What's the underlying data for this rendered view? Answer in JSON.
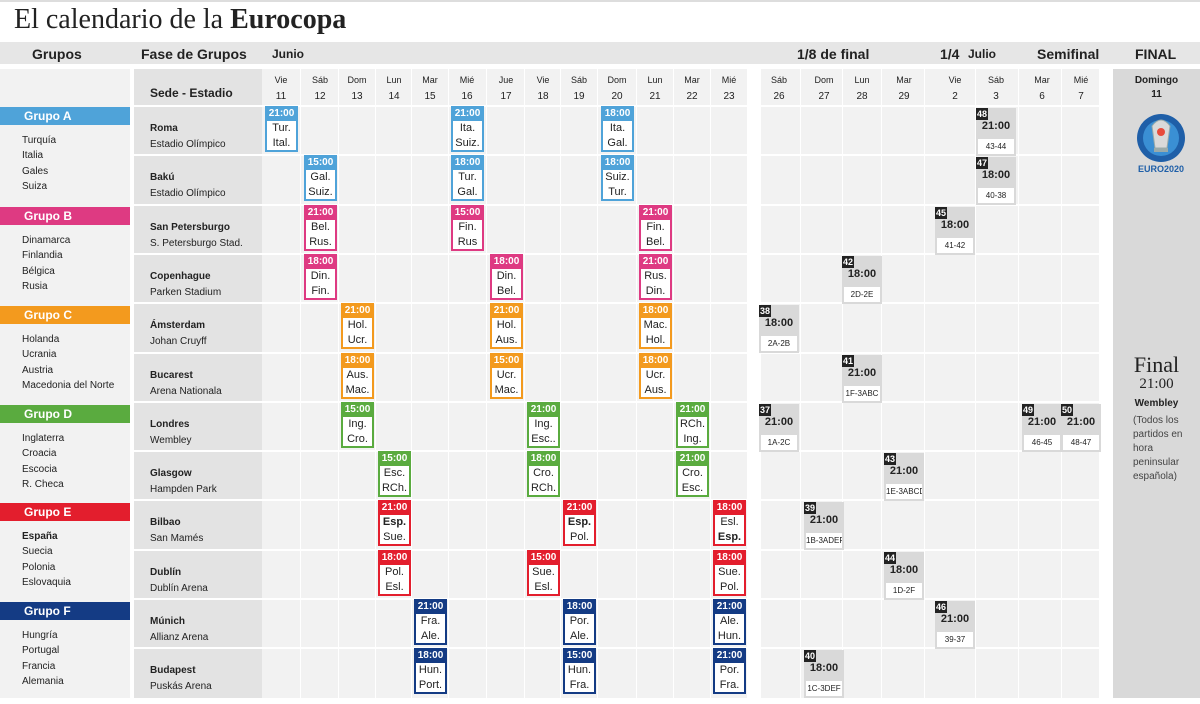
{
  "title": {
    "prefix": "El calendario de la",
    "bold": "Eurocopa"
  },
  "header": {
    "grupos": "Grupos",
    "fase": "Fase de Grupos",
    "junio": "Junio",
    "octavos": "1/8 de final",
    "cuartos": "1/4",
    "julio": "Julio",
    "semifinal": "Semifinal",
    "final": "FINAL"
  },
  "sede_header": "Sede - Estadio",
  "days": [
    {
      "w": "Vie",
      "d": "11"
    },
    {
      "w": "Sáb",
      "d": "12"
    },
    {
      "w": "Dom",
      "d": "13"
    },
    {
      "w": "Lun",
      "d": "14"
    },
    {
      "w": "Mar",
      "d": "15"
    },
    {
      "w": "Mié",
      "d": "16"
    },
    {
      "w": "Jue",
      "d": "17"
    },
    {
      "w": "Vie",
      "d": "18"
    },
    {
      "w": "Sáb",
      "d": "19"
    },
    {
      "w": "Dom",
      "d": "20"
    },
    {
      "w": "Lun",
      "d": "21"
    },
    {
      "w": "Mar",
      "d": "22"
    },
    {
      "w": "Mié",
      "d": "23"
    },
    {
      "w": "Sáb",
      "d": "26"
    },
    {
      "w": "Dom",
      "d": "27"
    },
    {
      "w": "Lun",
      "d": "28"
    },
    {
      "w": "Mar",
      "d": "29"
    },
    {
      "w": "Vie",
      "d": "2"
    },
    {
      "w": "Sáb",
      "d": "3"
    },
    {
      "w": "Mar",
      "d": "6"
    },
    {
      "w": "Mié",
      "d": "7"
    }
  ],
  "groups": [
    {
      "name": "Grupo A",
      "color": "#4fa3d9",
      "teams": [
        "Turquía",
        "Italia",
        "Gales",
        "Suiza"
      ]
    },
    {
      "name": "Grupo B",
      "color": "#de3a82",
      "teams": [
        "Dinamarca",
        "Finlandia",
        "Bélgica",
        "Rusia"
      ]
    },
    {
      "name": "Grupo C",
      "color": "#f39a1e",
      "teams": [
        "Holanda",
        "Ucrania",
        "Austria",
        "Macedonia del Norte"
      ]
    },
    {
      "name": "Grupo D",
      "color": "#5aab3f",
      "teams": [
        "Inglaterra",
        "Croacia",
        "Escocia",
        "R. Checa"
      ]
    },
    {
      "name": "Grupo E",
      "color": "#e31e2d",
      "teams": [
        "España",
        "Suecia",
        "Polonia",
        "Eslovaquia"
      ]
    },
    {
      "name": "Grupo F",
      "color": "#143b84",
      "teams": [
        "Hungría",
        "Portugal",
        "Francia",
        "Alemania"
      ]
    }
  ],
  "venues": [
    {
      "city": "Roma",
      "stadium": "Estadio Olímpico"
    },
    {
      "city": "Bakú",
      "stadium": "Estadio Olímpico"
    },
    {
      "city": "San Petersburgo",
      "stadium": "S. Petersburgo Stad."
    },
    {
      "city": "Copenhague",
      "stadium": "Parken Stadium"
    },
    {
      "city": "Ámsterdam",
      "stadium": "Johan Cruyff"
    },
    {
      "city": "Bucarest",
      "stadium": "Arena Nationala"
    },
    {
      "city": "Londres",
      "stadium": "Wembley"
    },
    {
      "city": "Glasgow",
      "stadium": "Hampden Park"
    },
    {
      "city": "Bilbao",
      "stadium": "San Mamés"
    },
    {
      "city": "Dublín",
      "stadium": "Dublín Arena"
    },
    {
      "city": "Múnich",
      "stadium": "Allianz Arena"
    },
    {
      "city": "Budapest",
      "stadium": "Puskás Arena"
    }
  ],
  "matches": [
    {
      "venue": 0,
      "day": 0,
      "time": "21:00",
      "t1": "Tur.",
      "t2": "Ital.",
      "group": 0
    },
    {
      "venue": 0,
      "day": 5,
      "time": "21:00",
      "t1": "Ita.",
      "t2": "Suiz.",
      "group": 0
    },
    {
      "venue": 0,
      "day": 9,
      "time": "18:00",
      "t1": "Ita.",
      "t2": "Gal.",
      "group": 0
    },
    {
      "venue": 1,
      "day": 1,
      "time": "15:00",
      "t1": "Gal.",
      "t2": "Suiz.",
      "group": 0
    },
    {
      "venue": 1,
      "day": 5,
      "time": "18:00",
      "t1": "Tur.",
      "t2": "Gal.",
      "group": 0
    },
    {
      "venue": 1,
      "day": 9,
      "time": "18:00",
      "t1": "Suiz.",
      "t2": "Tur.",
      "group": 0
    },
    {
      "venue": 2,
      "day": 1,
      "time": "21:00",
      "t1": "Bel.",
      "t2": "Rus.",
      "group": 1
    },
    {
      "venue": 2,
      "day": 5,
      "time": "15:00",
      "t1": "Fin.",
      "t2": "Rus",
      "group": 1
    },
    {
      "venue": 2,
      "day": 10,
      "time": "21:00",
      "t1": "Fin.",
      "t2": "Bel.",
      "group": 1
    },
    {
      "venue": 3,
      "day": 1,
      "time": "18:00",
      "t1": "Din.",
      "t2": "Fin.",
      "group": 1
    },
    {
      "venue": 3,
      "day": 6,
      "time": "18:00",
      "t1": "Din.",
      "t2": "Bel.",
      "group": 1
    },
    {
      "venue": 3,
      "day": 10,
      "time": "21:00",
      "t1": "Rus.",
      "t2": "Din.",
      "group": 1
    },
    {
      "venue": 4,
      "day": 2,
      "time": "21:00",
      "t1": "Hol.",
      "t2": "Ucr.",
      "group": 2
    },
    {
      "venue": 4,
      "day": 6,
      "time": "21:00",
      "t1": "Hol.",
      "t2": "Aus.",
      "group": 2
    },
    {
      "venue": 4,
      "day": 10,
      "time": "18:00",
      "t1": "Mac.",
      "t2": "Hol.",
      "group": 2
    },
    {
      "venue": 5,
      "day": 2,
      "time": "18:00",
      "t1": "Aus.",
      "t2": "Mac.",
      "group": 2
    },
    {
      "venue": 5,
      "day": 6,
      "time": "15:00",
      "t1": "Ucr.",
      "t2": "Mac.",
      "group": 2
    },
    {
      "venue": 5,
      "day": 10,
      "time": "18:00",
      "t1": "Ucr.",
      "t2": "Aus.",
      "group": 2
    },
    {
      "venue": 6,
      "day": 2,
      "time": "15:00",
      "t1": "Ing.",
      "t2": "Cro.",
      "group": 3
    },
    {
      "venue": 6,
      "day": 7,
      "time": "21:00",
      "t1": "Ing.",
      "t2": "Esc..",
      "group": 3
    },
    {
      "venue": 6,
      "day": 11,
      "time": "21:00",
      "t1": "RCh.",
      "t2": "Ing.",
      "group": 3
    },
    {
      "venue": 7,
      "day": 3,
      "time": "15:00",
      "t1": "Esc.",
      "t2": "RCh.",
      "group": 3
    },
    {
      "venue": 7,
      "day": 7,
      "time": "18:00",
      "t1": "Cro.",
      "t2": "RCh.",
      "group": 3
    },
    {
      "venue": 7,
      "day": 11,
      "time": "21:00",
      "t1": "Cro.",
      "t2": "Esc.",
      "group": 3
    },
    {
      "venue": 8,
      "day": 3,
      "time": "21:00",
      "t1": "Esp.",
      "t2": "Sue.",
      "group": 4,
      "b1": true
    },
    {
      "venue": 8,
      "day": 8,
      "time": "21:00",
      "t1": "Esp.",
      "t2": "Pol.",
      "group": 4,
      "b1": true
    },
    {
      "venue": 8,
      "day": 12,
      "time": "18:00",
      "t1": "Esl.",
      "t2": "Esp.",
      "group": 4,
      "b2": true
    },
    {
      "venue": 9,
      "day": 3,
      "time": "18:00",
      "t1": "Pol.",
      "t2": "Esl.",
      "group": 4
    },
    {
      "venue": 9,
      "day": 7,
      "time": "15:00",
      "t1": "Sue.",
      "t2": "Esl.",
      "group": 4
    },
    {
      "venue": 9,
      "day": 12,
      "time": "18:00",
      "t1": "Sue.",
      "t2": "Pol.",
      "group": 4
    },
    {
      "venue": 10,
      "day": 4,
      "time": "21:00",
      "t1": "Fra.",
      "t2": "Ale.",
      "group": 5
    },
    {
      "venue": 10,
      "day": 8,
      "time": "18:00",
      "t1": "Por.",
      "t2": "Ale.",
      "group": 5
    },
    {
      "venue": 10,
      "day": 12,
      "time": "21:00",
      "t1": "Ale.",
      "t2": "Hun.",
      "group": 5
    },
    {
      "venue": 11,
      "day": 4,
      "time": "18:00",
      "t1": "Hun.",
      "t2": "Port.",
      "group": 5
    },
    {
      "venue": 11,
      "day": 8,
      "time": "15:00",
      "t1": "Hun.",
      "t2": "Fra.",
      "group": 5
    },
    {
      "venue": 11,
      "day": 12,
      "time": "21:00",
      "t1": "Por.",
      "t2": "Fra.",
      "group": 5
    }
  ],
  "knockouts": [
    {
      "num": "48",
      "venue": 0,
      "day": 18,
      "time": "21:00",
      "pair": "43-44"
    },
    {
      "num": "47",
      "venue": 1,
      "day": 18,
      "time": "18:00",
      "pair": "40-38"
    },
    {
      "num": "45",
      "venue": 2,
      "day": 17,
      "time": "18:00",
      "pair": "41-42"
    },
    {
      "num": "42",
      "venue": 3,
      "day": 15,
      "time": "18:00",
      "pair": "2D-2E"
    },
    {
      "num": "38",
      "venue": 4,
      "day": 13,
      "time": "18:00",
      "pair": "2A-2B"
    },
    {
      "num": "41",
      "venue": 5,
      "day": 15,
      "time": "21:00",
      "pair": "1F-3ABC"
    },
    {
      "num": "37",
      "venue": 6,
      "day": 13,
      "time": "21:00",
      "pair": "1A-2C"
    },
    {
      "num": "49",
      "venue": 6,
      "day": 19,
      "time": "21:00",
      "pair": "46-45"
    },
    {
      "num": "50",
      "venue": 6,
      "day": 20,
      "time": "21:00",
      "pair": "48-47"
    },
    {
      "num": "43",
      "venue": 7,
      "day": 16,
      "time": "21:00",
      "pair": "1E-3ABCD"
    },
    {
      "num": "39",
      "venue": 8,
      "day": 14,
      "time": "21:00",
      "pair": "1B-3ADEF"
    },
    {
      "num": "44",
      "venue": 9,
      "day": 16,
      "time": "18:00",
      "pair": "1D-2F"
    },
    {
      "num": "46",
      "venue": 10,
      "day": 17,
      "time": "21:00",
      "pair": "39-37"
    },
    {
      "num": "40",
      "venue": 11,
      "day": 14,
      "time": "18:00",
      "pair": "1C-3DEF"
    }
  ],
  "final": {
    "day_name": "Domingo",
    "day_num": "11",
    "logo_text": "EURO2020",
    "word": "Final",
    "time": "21:00",
    "venue": "Wembley",
    "note": "(Todos los partidos en hora peninsular española)"
  }
}
